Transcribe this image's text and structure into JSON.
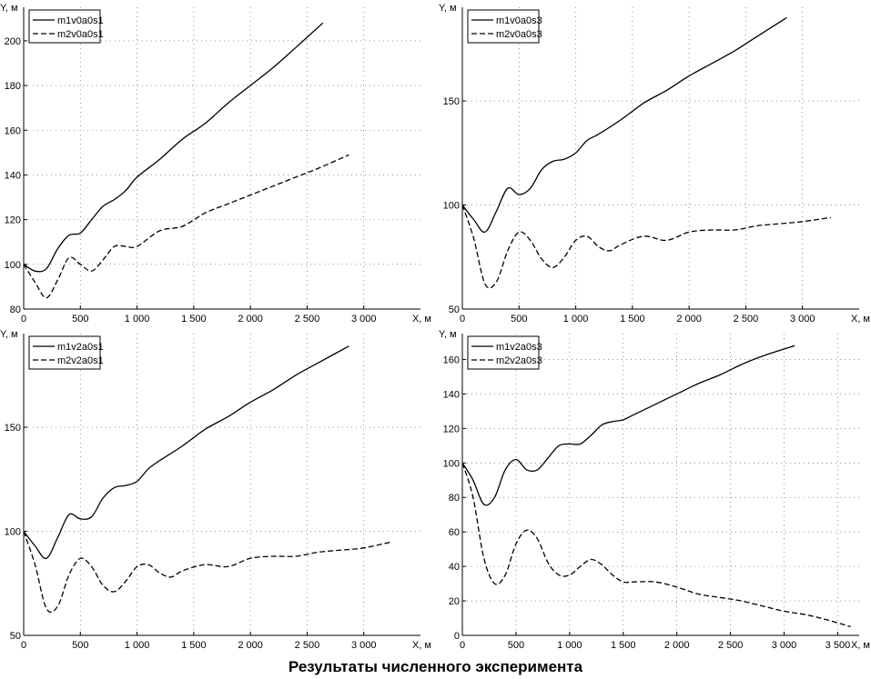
{
  "caption": "Результаты численного эксперимента",
  "colors": {
    "ink": "#000000",
    "background": "#ffffff"
  },
  "chart_data": [
    {
      "type": "line",
      "xlabel": "X, м",
      "ylabel": "Y, м",
      "xlim": [
        0,
        3500
      ],
      "ylim": [
        80,
        215
      ],
      "xticks": [
        0,
        500,
        1000,
        1500,
        2000,
        2500,
        3000
      ],
      "xtick_labels": [
        "0",
        "500",
        "1 000",
        "1 500",
        "2 000",
        "2 500",
        "3 000"
      ],
      "yticks": [
        80,
        100,
        120,
        140,
        160,
        180,
        200
      ],
      "ytick_labels": [
        "80",
        "100",
        "120",
        "140",
        "160",
        "180",
        "200"
      ],
      "grid": "dotted",
      "legend": "top-left",
      "series": [
        {
          "name": "m1v0a0s1",
          "style": "solid",
          "x": [
            0,
            100,
            200,
            300,
            400,
            500,
            600,
            700,
            800,
            900,
            1000,
            1200,
            1400,
            1600,
            1800,
            2000,
            2200,
            2400,
            2640
          ],
          "y": [
            100,
            97,
            98,
            107,
            113,
            114,
            120,
            126,
            129,
            133,
            139,
            147,
            156,
            163,
            172,
            180,
            188,
            197,
            208
          ]
        },
        {
          "name": "m2v0a0s1",
          "style": "dashed",
          "x": [
            0,
            100,
            200,
            300,
            400,
            500,
            600,
            700,
            800,
            900,
            1000,
            1200,
            1400,
            1600,
            1800,
            2000,
            2200,
            2400,
            2600,
            2870
          ],
          "y": [
            100,
            92,
            85,
            93,
            103,
            100,
            97,
            102,
            108,
            108,
            108,
            115,
            117,
            123,
            127,
            131,
            135,
            139,
            143,
            149
          ]
        }
      ]
    },
    {
      "type": "line",
      "xlabel": "X, м",
      "ylabel": "Y, м",
      "xlim": [
        0,
        3500
      ],
      "ylim": [
        50,
        195
      ],
      "xticks": [
        0,
        500,
        1000,
        1500,
        2000,
        2500,
        3000
      ],
      "xtick_labels": [
        "0",
        "500",
        "1 000",
        "1 500",
        "2 000",
        "2 500",
        "3 000"
      ],
      "yticks": [
        50,
        100,
        150
      ],
      "ytick_labels": [
        "50",
        "100",
        "150"
      ],
      "grid": "dotted",
      "legend": "top-left",
      "series": [
        {
          "name": "m1v0a0s3",
          "style": "solid",
          "x": [
            0,
            100,
            200,
            300,
            400,
            500,
            600,
            700,
            800,
            900,
            1000,
            1100,
            1200,
            1400,
            1600,
            1800,
            2000,
            2200,
            2400,
            2600,
            2860
          ],
          "y": [
            100,
            93,
            87,
            97,
            108,
            105,
            108,
            117,
            121,
            122,
            125,
            131,
            134,
            141,
            149,
            155,
            162,
            168,
            174,
            181,
            190
          ]
        },
        {
          "name": "m2v0a0s3",
          "style": "dashed",
          "x": [
            0,
            100,
            200,
            300,
            400,
            500,
            600,
            700,
            800,
            900,
            1000,
            1100,
            1200,
            1300,
            1400,
            1600,
            1800,
            2000,
            2200,
            2400,
            2600,
            2800,
            3000,
            3250
          ],
          "y": [
            100,
            84,
            62,
            63,
            78,
            87,
            83,
            74,
            70,
            75,
            83,
            85,
            80,
            78,
            81,
            85,
            83,
            87,
            88,
            88,
            90,
            91,
            92,
            94
          ]
        }
      ]
    },
    {
      "type": "line",
      "xlabel": "X, м",
      "ylabel": "Y, м",
      "xlim": [
        0,
        3500
      ],
      "ylim": [
        50,
        195
      ],
      "xticks": [
        0,
        500,
        1000,
        1500,
        2000,
        2500,
        3000
      ],
      "xtick_labels": [
        "0",
        "500",
        "1 000",
        "1 500",
        "2 000",
        "2 500",
        "3 000"
      ],
      "yticks": [
        50,
        100,
        150
      ],
      "ytick_labels": [
        "50",
        "100",
        "150"
      ],
      "grid": "dotted",
      "legend": "top-left",
      "series": [
        {
          "name": "m1v2a0s1",
          "style": "solid",
          "x": [
            0,
            100,
            200,
            300,
            400,
            500,
            600,
            700,
            800,
            900,
            1000,
            1100,
            1200,
            1400,
            1600,
            1800,
            2000,
            2200,
            2400,
            2600,
            2870
          ],
          "y": [
            100,
            93,
            87,
            97,
            108,
            106,
            107,
            116,
            121,
            122,
            124,
            130,
            134,
            141,
            149,
            155,
            162,
            168,
            175,
            181,
            189
          ]
        },
        {
          "name": "m2v2a0s1",
          "style": "dashed",
          "x": [
            0,
            100,
            200,
            300,
            400,
            500,
            600,
            700,
            800,
            900,
            1000,
            1100,
            1200,
            1300,
            1400,
            1600,
            1800,
            2000,
            2200,
            2400,
            2600,
            2800,
            3000,
            3250
          ],
          "y": [
            100,
            84,
            63,
            64,
            79,
            87,
            83,
            74,
            71,
            76,
            83,
            84,
            80,
            78,
            81,
            84,
            83,
            87,
            88,
            88,
            90,
            91,
            92,
            95
          ]
        }
      ]
    },
    {
      "type": "line",
      "xlabel": "X, м",
      "ylabel": "Y, м",
      "xlim": [
        0,
        3700
      ],
      "ylim": [
        0,
        175
      ],
      "xticks": [
        0,
        500,
        1000,
        1500,
        2000,
        2500,
        3000,
        3500
      ],
      "xtick_labels": [
        "0",
        "500",
        "1 000",
        "1 500",
        "2 000",
        "2 500",
        "3 000",
        "3 500"
      ],
      "yticks": [
        0,
        20,
        40,
        60,
        80,
        100,
        120,
        140,
        160
      ],
      "ytick_labels": [
        "0",
        "20",
        "40",
        "60",
        "80",
        "100",
        "120",
        "140",
        "160"
      ],
      "grid": "dotted",
      "legend": "top-left",
      "series": [
        {
          "name": "m1v2a0s3",
          "style": "solid",
          "x": [
            0,
            100,
            200,
            300,
            400,
            500,
            600,
            700,
            800,
            900,
            1000,
            1100,
            1200,
            1300,
            1400,
            1500,
            1600,
            1800,
            2000,
            2200,
            2400,
            2600,
            2800,
            3100
          ],
          "y": [
            100,
            90,
            76,
            80,
            96,
            102,
            96,
            96,
            103,
            110,
            111,
            111,
            116,
            122,
            124,
            125,
            128,
            134,
            140,
            146,
            151,
            157,
            162,
            168
          ]
        },
        {
          "name": "m2v2a0s3",
          "style": "dashed",
          "x": [
            0,
            100,
            200,
            300,
            400,
            500,
            600,
            700,
            800,
            900,
            1000,
            1100,
            1200,
            1300,
            1400,
            1500,
            1600,
            1800,
            2000,
            2200,
            2400,
            2600,
            2800,
            3000,
            3200,
            3400,
            3620
          ],
          "y": [
            100,
            80,
            45,
            30,
            35,
            53,
            61,
            56,
            42,
            35,
            35,
            40,
            44,
            41,
            35,
            31,
            31,
            31,
            28,
            24,
            22,
            20,
            17,
            14,
            12,
            9,
            5
          ]
        }
      ]
    }
  ]
}
